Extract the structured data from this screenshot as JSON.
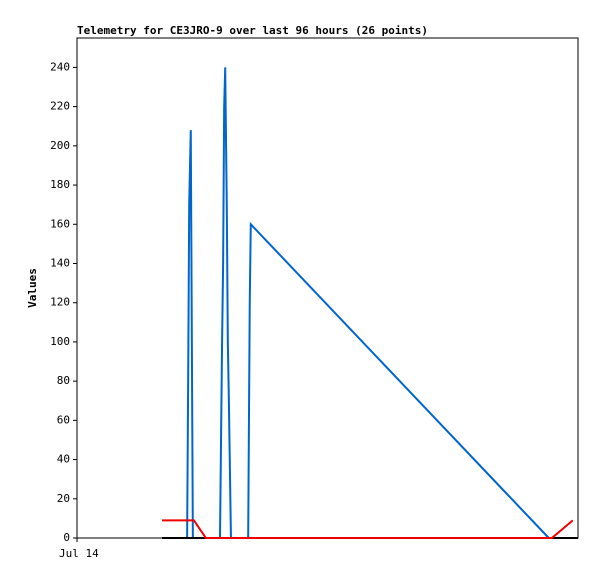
{
  "chart_data": {
    "type": "line",
    "title": "Telemetry for CE3JRO-9 over last 96 hours (26 points)",
    "ylabel": "Values",
    "xlim": [
      0,
      96
    ],
    "xticks": [
      {
        "value": 0,
        "label": "Jul 14"
      }
    ],
    "ylim": [
      0,
      255
    ],
    "yticks": [
      0,
      20,
      40,
      60,
      80,
      100,
      120,
      140,
      160,
      180,
      200,
      220,
      240
    ],
    "grid": false,
    "series": [
      {
        "color": "#0066cc",
        "x": [
          21.1,
          21.3,
          21.5,
          21.8,
          22.0,
          22.2,
          27.4,
          27.8,
          28.0,
          28.2,
          28.4,
          28.5,
          28.7,
          28.9,
          29.1,
          29.5,
          32.8,
          33.1,
          33.3,
          90.4
        ],
        "values": [
          0,
          80,
          170,
          208,
          104,
          0,
          0,
          100,
          140,
          220,
          240,
          215,
          170,
          100,
          70,
          0,
          0,
          120,
          160,
          0
        ]
      },
      {
        "color": "#000000",
        "x": [
          16.3,
          96
        ],
        "values": [
          0,
          0
        ]
      },
      {
        "color": "#ee0000",
        "x": [
          16.3,
          22.4,
          24.7,
          91.0,
          95.0
        ],
        "values": [
          9,
          9,
          0,
          0,
          9
        ]
      }
    ]
  }
}
